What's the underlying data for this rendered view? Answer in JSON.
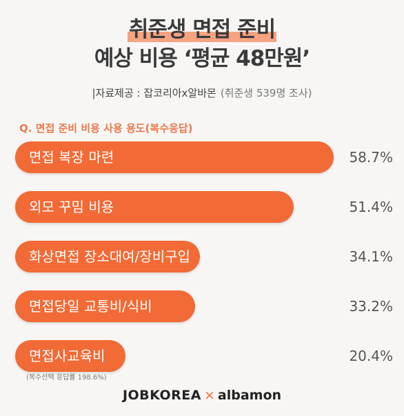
{
  "title": {
    "line1": "취준생 면접 준비",
    "line2": "예상 비용 ‘평균 48만원’"
  },
  "source": {
    "label": "|자료제공 : 잡코리아x알바몬",
    "survey": "(취준생 539명 조사)"
  },
  "question": "Q. 면접 준비 비용 사용 용도(복수응답)",
  "note": "(복수선택 응답률 198.6%)",
  "logos": {
    "jobkorea": "JOBKOREA",
    "times": "×",
    "albamon": "albamon"
  },
  "colors": {
    "bar": "#f26a35",
    "highlight": "#f4875a"
  },
  "chart_data": {
    "type": "bar",
    "orientation": "horizontal",
    "categories": [
      "면접 복장 마련",
      "외모 꾸밈 비용",
      "화상면접 장소대여/장비구입",
      "면접당일 교통비/식비",
      "면접사교육비"
    ],
    "values": [
      58.7,
      51.4,
      34.1,
      33.2,
      20.4
    ],
    "value_labels": [
      "58.7%",
      "51.4%",
      "34.1%",
      "33.2%",
      "20.4%"
    ],
    "title": "Q. 면접 준비 비용 사용 용도(복수응답)",
    "xlim": [
      0,
      60
    ],
    "grid": false
  }
}
